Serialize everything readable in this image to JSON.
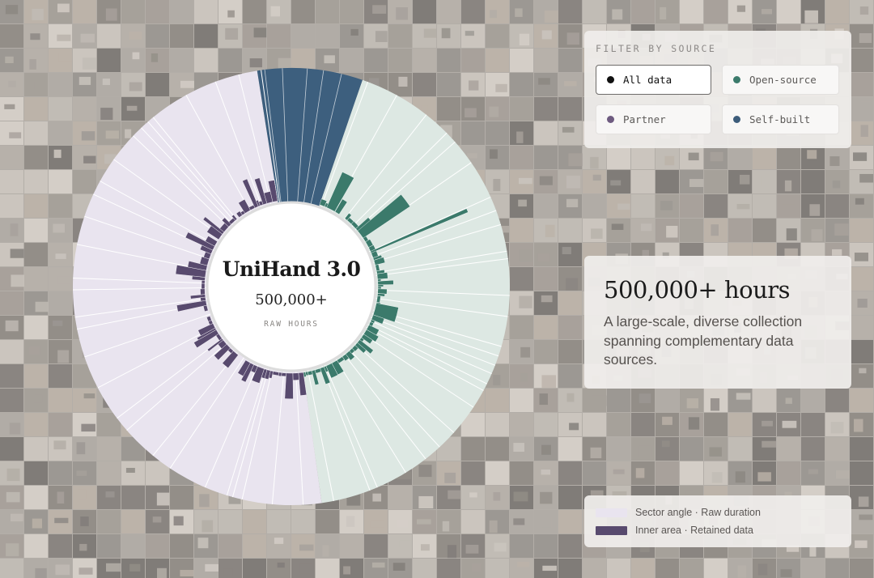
{
  "filter": {
    "title": "FILTER BY SOURCE",
    "options": [
      {
        "label": "All data",
        "color": "#111111",
        "active": true
      },
      {
        "label": "Open-source",
        "color": "#3b7a6b",
        "active": false
      },
      {
        "label": "Partner",
        "color": "#6e5b80",
        "active": false
      },
      {
        "label": "Self-built",
        "color": "#3c5c7a",
        "active": false
      }
    ]
  },
  "center": {
    "title": "UniHand 3.0",
    "value": "500,000+",
    "label": "RAW HOURS"
  },
  "info": {
    "title": "500,000+ hours",
    "description": "A large-scale, diverse collection spanning complementary data sources."
  },
  "legend": {
    "items": [
      {
        "label": "Sector angle · Raw duration",
        "color": "#e9e4ef"
      },
      {
        "label": "Inner area · Retained data",
        "color": "#584a6e"
      }
    ]
  },
  "colors": {
    "partner_outer": "#e9e4ef",
    "partner_inner": "#584a6e",
    "open_outer": "#dde8e3",
    "open_inner": "#3b7a6b",
    "self_outer": "#3d5f7e",
    "self_inner": "#3d5f7e"
  }
}
